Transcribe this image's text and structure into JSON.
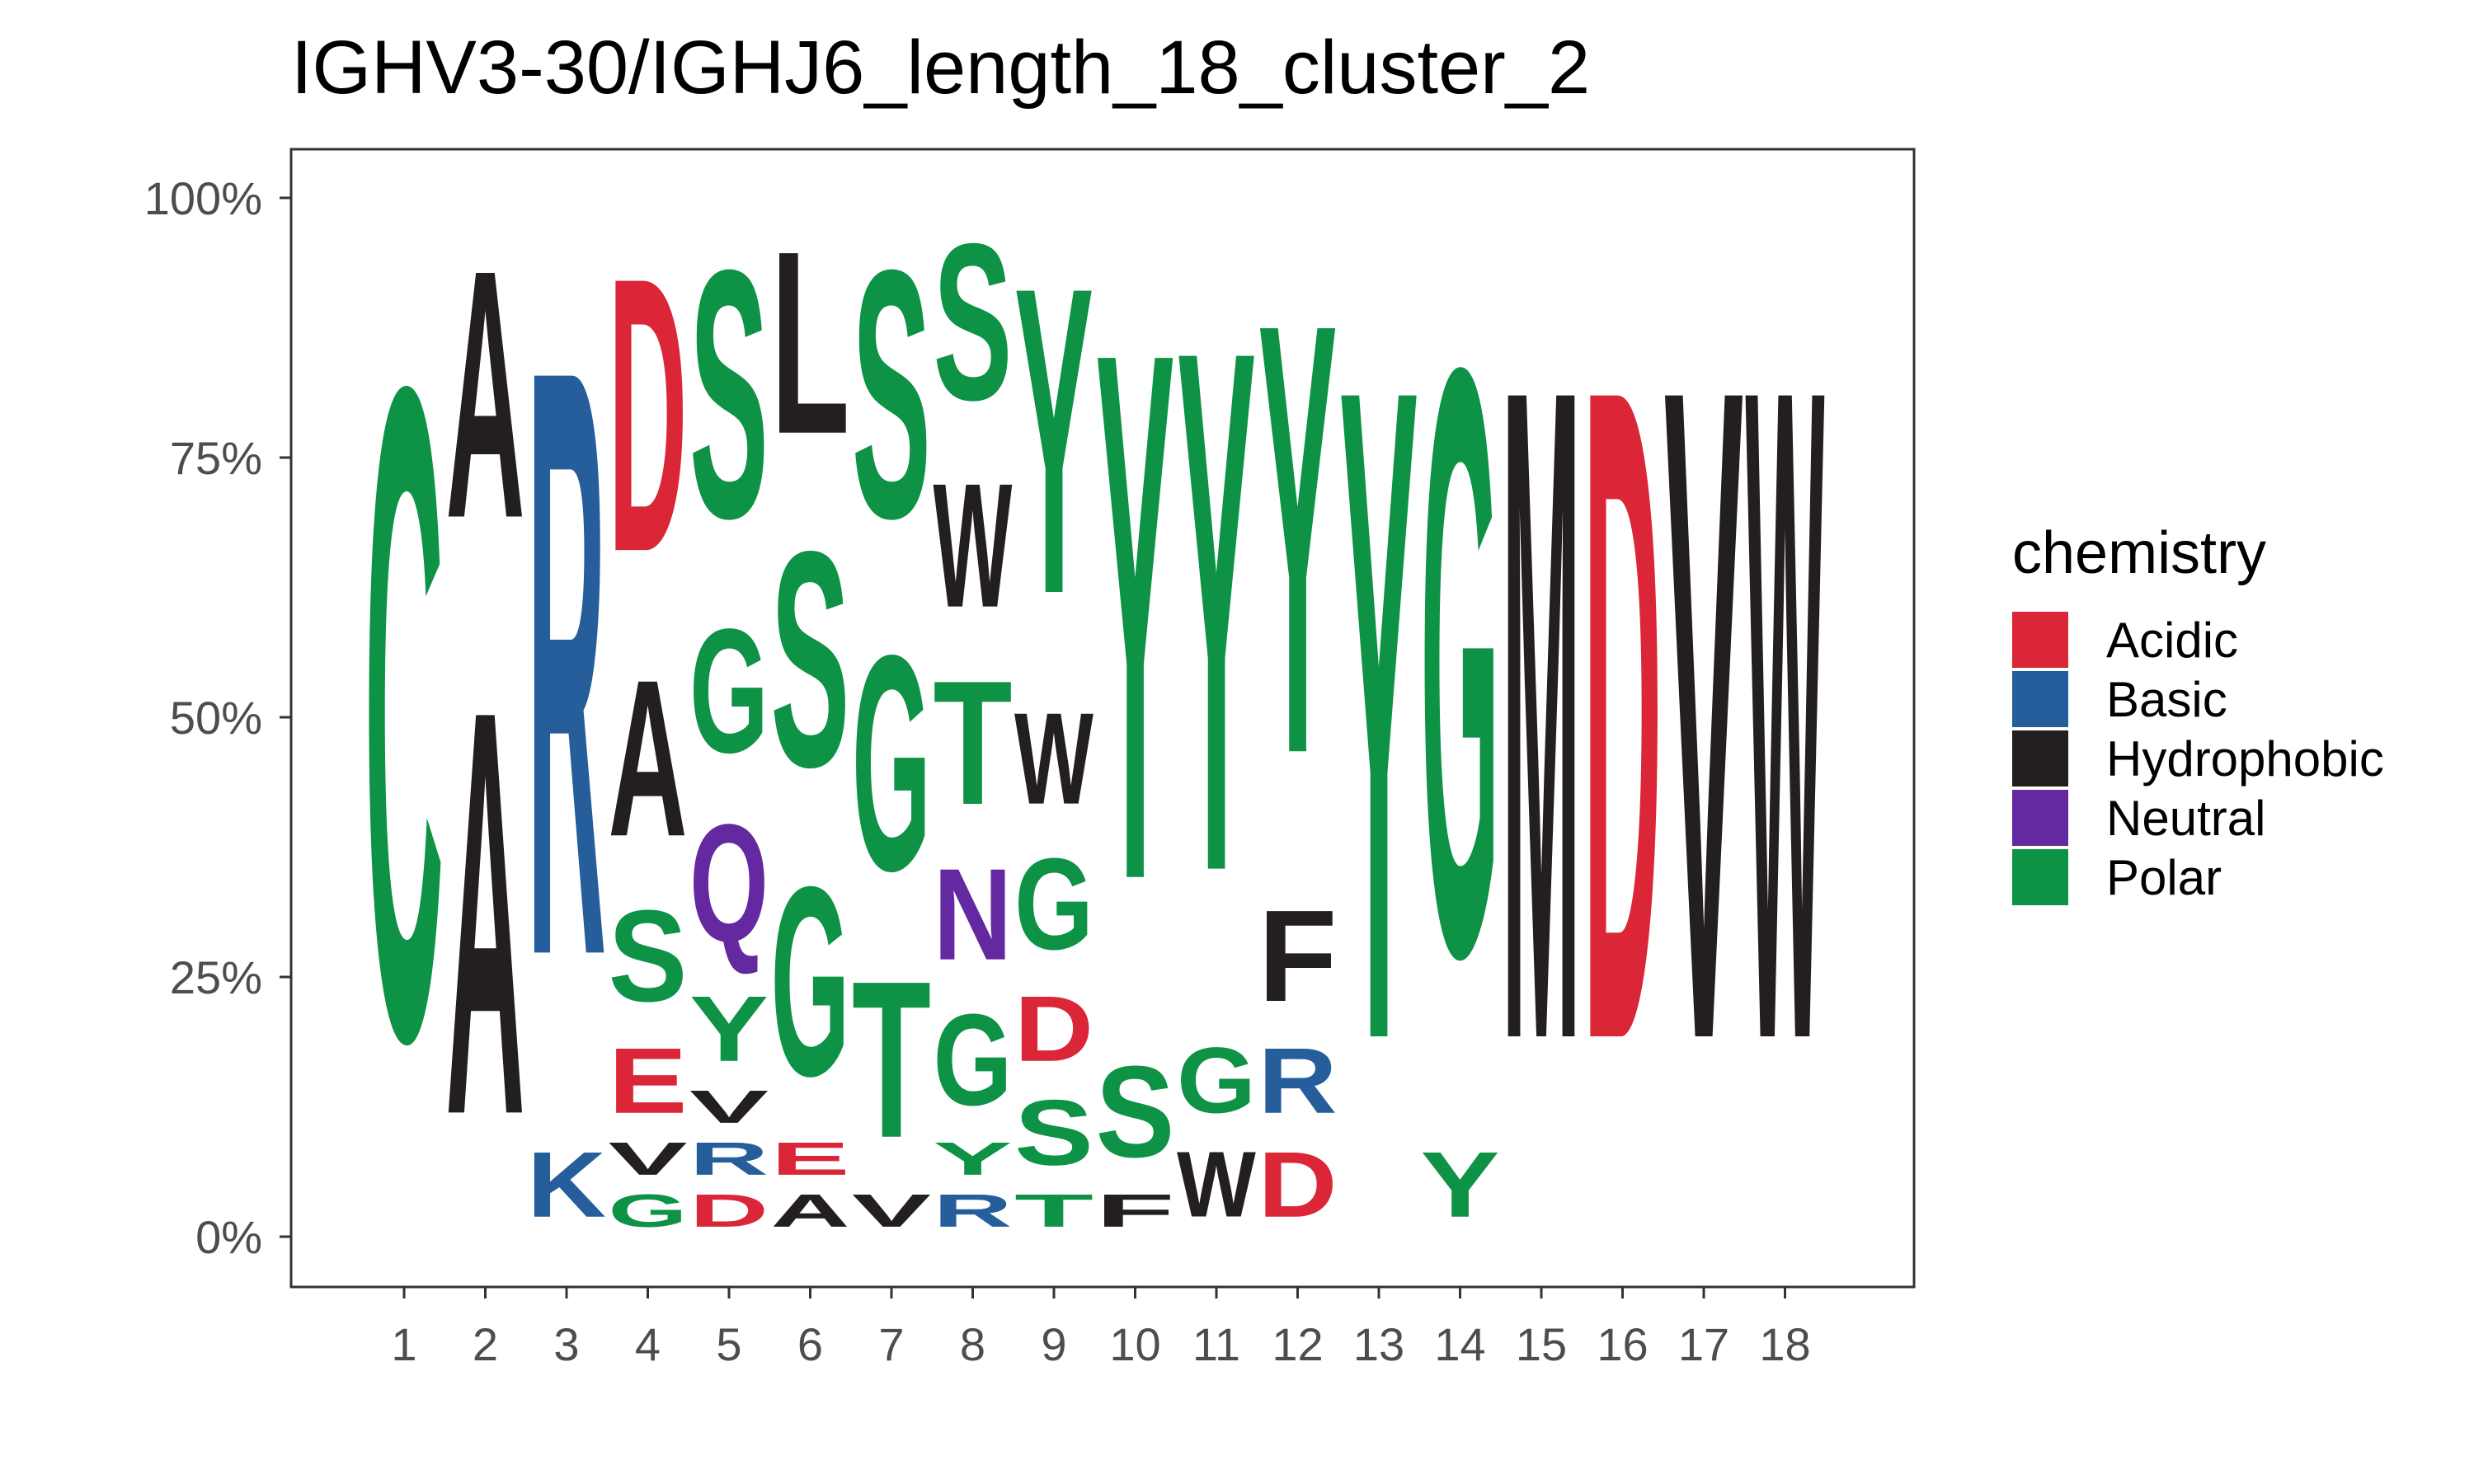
{
  "chart_data": {
    "type": "sequence-logo",
    "title": "IGHV3-30/IGHJ6_length_18_cluster_2",
    "ylabel": "",
    "xlabel": "",
    "ylim": [
      0,
      1
    ],
    "y_ticks": [
      "0%",
      "25%",
      "50%",
      "75%",
      "100%"
    ],
    "x_ticks": [
      "1",
      "2",
      "3",
      "4",
      "5",
      "6",
      "7",
      "8",
      "9",
      "10",
      "11",
      "12",
      "13",
      "14",
      "15",
      "16",
      "17",
      "18"
    ],
    "grid": false,
    "legend": {
      "title": "chemistry",
      "position": "right",
      "items": [
        {
          "label": "Acidic",
          "color": "#DA2636"
        },
        {
          "label": "Basic",
          "color": "#255E9B"
        },
        {
          "label": "Hydrophobic",
          "color": "#231F20"
        },
        {
          "label": "Neutral",
          "color": "#6428A0"
        },
        {
          "label": "Polar",
          "color": "#0D9246"
        }
      ]
    },
    "positions": [
      {
        "pos": 1,
        "letters": [
          {
            "aa": "C",
            "freq": 1.0,
            "chem": "Polar"
          }
        ]
      },
      {
        "pos": 2,
        "letters": [
          {
            "aa": "A",
            "freq": 0.62,
            "chem": "Hydrophobic"
          },
          {
            "aa": "A",
            "freq": 0.38,
            "chem": "Hydrophobic"
          }
        ]
      },
      {
        "pos": 3,
        "letters": [
          {
            "aa": "K",
            "freq": 0.1,
            "chem": "Basic"
          },
          {
            "aa": "R",
            "freq": 0.9,
            "chem": "Basic"
          }
        ]
      },
      {
        "pos": 4,
        "letters": [
          {
            "aa": "G",
            "freq": 0.05,
            "chem": "Polar"
          },
          {
            "aa": "V",
            "freq": 0.05,
            "chem": "Hydrophobic"
          },
          {
            "aa": "E",
            "freq": 0.1,
            "chem": "Acidic"
          },
          {
            "aa": "S",
            "freq": 0.14,
            "chem": "Polar"
          },
          {
            "aa": "A",
            "freq": 0.24,
            "chem": "Hydrophobic"
          },
          {
            "aa": "D",
            "freq": 0.42,
            "chem": "Acidic"
          }
        ]
      },
      {
        "pos": 5,
        "letters": [
          {
            "aa": "D",
            "freq": 0.05,
            "chem": "Acidic"
          },
          {
            "aa": "R",
            "freq": 0.05,
            "chem": "Basic"
          },
          {
            "aa": "V",
            "freq": 0.05,
            "chem": "Hydrophobic"
          },
          {
            "aa": "Y",
            "freq": 0.1,
            "chem": "Polar"
          },
          {
            "aa": "Q",
            "freq": 0.18,
            "chem": "Neutral"
          },
          {
            "aa": "G",
            "freq": 0.19,
            "chem": "Polar"
          },
          {
            "aa": "S",
            "freq": 0.38,
            "chem": "Polar"
          }
        ]
      },
      {
        "pos": 6,
        "letters": [
          {
            "aa": "A",
            "freq": 0.05,
            "chem": "Hydrophobic"
          },
          {
            "aa": "E",
            "freq": 0.05,
            "chem": "Acidic"
          },
          {
            "aa": "G",
            "freq": 0.29,
            "chem": "Polar"
          },
          {
            "aa": "S",
            "freq": 0.33,
            "chem": "Polar"
          },
          {
            "aa": "L",
            "freq": 0.28,
            "chem": "Hydrophobic"
          }
        ]
      },
      {
        "pos": 7,
        "letters": [
          {
            "aa": "V",
            "freq": 0.05,
            "chem": "Hydrophobic"
          },
          {
            "aa": "T",
            "freq": 0.24,
            "chem": "Polar"
          },
          {
            "aa": "G",
            "freq": 0.33,
            "chem": "Polar"
          },
          {
            "aa": "S",
            "freq": 0.38,
            "chem": "Polar"
          }
        ]
      },
      {
        "pos": 8,
        "letters": [
          {
            "aa": "R",
            "freq": 0.05,
            "chem": "Basic"
          },
          {
            "aa": "Y",
            "freq": 0.05,
            "chem": "Polar"
          },
          {
            "aa": "G",
            "freq": 0.14,
            "chem": "Polar"
          },
          {
            "aa": "N",
            "freq": 0.14,
            "chem": "Neutral"
          },
          {
            "aa": "T",
            "freq": 0.19,
            "chem": "Polar"
          },
          {
            "aa": "W",
            "freq": 0.19,
            "chem": "Hydrophobic"
          },
          {
            "aa": "S",
            "freq": 0.24,
            "chem": "Polar"
          }
        ]
      },
      {
        "pos": 9,
        "letters": [
          {
            "aa": "T",
            "freq": 0.05,
            "chem": "Polar"
          },
          {
            "aa": "S",
            "freq": 0.1,
            "chem": "Polar"
          },
          {
            "aa": "D",
            "freq": 0.1,
            "chem": "Acidic"
          },
          {
            "aa": "G",
            "freq": 0.14,
            "chem": "Polar"
          },
          {
            "aa": "W",
            "freq": 0.14,
            "chem": "Hydrophobic"
          },
          {
            "aa": "Y",
            "freq": 0.47,
            "chem": "Polar"
          }
        ]
      },
      {
        "pos": 10,
        "letters": [
          {
            "aa": "F",
            "freq": 0.05,
            "chem": "Hydrophobic"
          },
          {
            "aa": "S",
            "freq": 0.14,
            "chem": "Polar"
          },
          {
            "aa": "Y",
            "freq": 0.81,
            "chem": "Polar"
          }
        ]
      },
      {
        "pos": 11,
        "letters": [
          {
            "aa": "W",
            "freq": 0.1,
            "chem": "Hydrophobic"
          },
          {
            "aa": "G",
            "freq": 0.1,
            "chem": "Polar"
          },
          {
            "aa": "Y",
            "freq": 0.8,
            "chem": "Polar"
          }
        ]
      },
      {
        "pos": 12,
        "letters": [
          {
            "aa": "D",
            "freq": 0.1,
            "chem": "Acidic"
          },
          {
            "aa": "R",
            "freq": 0.1,
            "chem": "Basic"
          },
          {
            "aa": "F",
            "freq": 0.14,
            "chem": "Hydrophobic"
          },
          {
            "aa": "Y",
            "freq": 0.66,
            "chem": "Polar"
          }
        ]
      },
      {
        "pos": 13,
        "letters": [
          {
            "aa": "Y",
            "freq": 1.0,
            "chem": "Polar"
          }
        ]
      },
      {
        "pos": 14,
        "letters": [
          {
            "aa": "Y",
            "freq": 0.1,
            "chem": "Polar"
          },
          {
            "aa": "G",
            "freq": 0.9,
            "chem": "Polar"
          }
        ]
      },
      {
        "pos": 15,
        "letters": [
          {
            "aa": "M",
            "freq": 1.0,
            "chem": "Hydrophobic"
          }
        ]
      },
      {
        "pos": 16,
        "letters": [
          {
            "aa": "D",
            "freq": 1.0,
            "chem": "Acidic"
          }
        ]
      },
      {
        "pos": 17,
        "letters": [
          {
            "aa": "V",
            "freq": 1.0,
            "chem": "Hydrophobic"
          }
        ]
      },
      {
        "pos": 18,
        "letters": [
          {
            "aa": "W",
            "freq": 1.0,
            "chem": "Hydrophobic"
          }
        ]
      }
    ]
  }
}
